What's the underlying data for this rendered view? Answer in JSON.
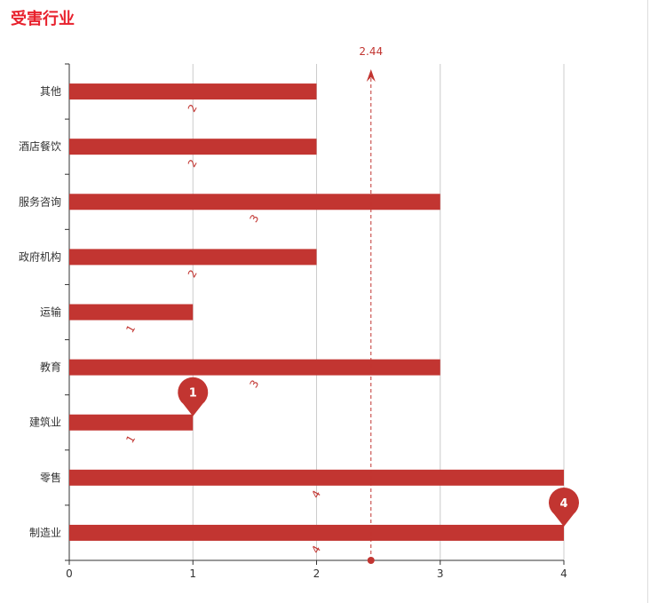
{
  "title": "受害行业",
  "colors": {
    "bar": "#c23531",
    "title": "#e8202c",
    "grid": "#cccccc",
    "axis": "#333333"
  },
  "chart_data": {
    "type": "bar",
    "orientation": "horizontal",
    "title": "受害行业",
    "categories": [
      "制造业",
      "零售",
      "建筑业",
      "教育",
      "运输",
      "政府机构",
      "服务咨询",
      "酒店餐饮",
      "其他"
    ],
    "values": [
      4,
      4,
      1,
      3,
      1,
      2,
      3,
      2,
      2
    ],
    "xlim": [
      0,
      4
    ],
    "xticks": [
      "0",
      "1",
      "2",
      "3",
      "4"
    ],
    "grid": true,
    "mark_points": [
      {
        "label": "1",
        "category": "建筑业",
        "value": 1
      },
      {
        "label": "4",
        "category": "制造业",
        "value": 4
      }
    ],
    "mark_line": {
      "label": "2.44",
      "value": 2.44
    }
  }
}
